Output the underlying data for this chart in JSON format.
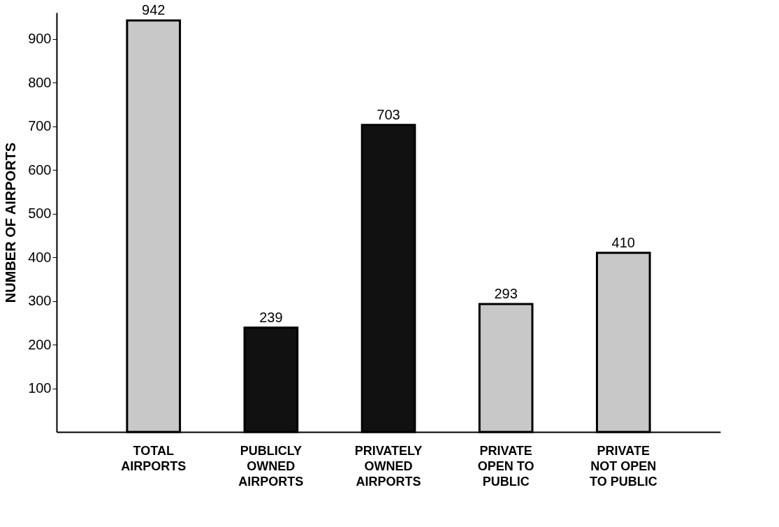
{
  "chart_data": {
    "type": "bar",
    "ylabel": "NUMBER OF AIRPORTS",
    "categories": [
      "TOTAL\nAIRPORTS",
      "PUBLICLY\nOWNED\nAIRPORTS",
      "PRIVATELY\nOWNED\nAIRPORTS",
      "PRIVATE\nOPEN TO\nPUBLIC",
      "PRIVATE\nNOT OPEN\nTO PUBLIC"
    ],
    "values": [
      942,
      239,
      703,
      293,
      410
    ],
    "colors": [
      "#c8c8c8",
      "#111111",
      "#111111",
      "#c8c8c8",
      "#c8c8c8"
    ],
    "ylim": [
      0,
      960
    ],
    "yticks": [
      100,
      200,
      300,
      400,
      500,
      600,
      700,
      800,
      900
    ],
    "data_labels": true,
    "grid": false
  }
}
